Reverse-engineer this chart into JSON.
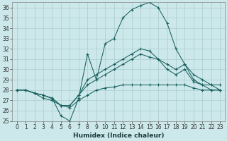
{
  "xlabel": "Humidex (Indice chaleur)",
  "xlim": [
    -0.5,
    23.5
  ],
  "ylim": [
    25,
    36.5
  ],
  "yticks": [
    25,
    26,
    27,
    28,
    29,
    30,
    31,
    32,
    33,
    34,
    35,
    36
  ],
  "xticks": [
    0,
    1,
    2,
    3,
    4,
    5,
    6,
    7,
    8,
    9,
    10,
    11,
    12,
    13,
    14,
    15,
    16,
    17,
    18,
    19,
    20,
    21,
    22,
    23
  ],
  "bg_color": "#cce8ea",
  "grid_color": "#aacccc",
  "line_color": "#1a6060",
  "series": {
    "s1": [
      28,
      28,
      27.7,
      27.5,
      27.2,
      25.5,
      25.0,
      27.2,
      31.5,
      29.0,
      32.5,
      33.0,
      35.0,
      35.8,
      36.2,
      36.5,
      36.0,
      34.5,
      32.0,
      30.5,
      29.0,
      28.5,
      28.5,
      28.0
    ],
    "s2": [
      28,
      28,
      27.7,
      27.5,
      27.2,
      26.5,
      26.5,
      27.5,
      29.0,
      29.5,
      30.0,
      30.5,
      31.0,
      31.5,
      32.0,
      31.8,
      31.0,
      30.5,
      30.0,
      30.5,
      29.5,
      29.0,
      28.5,
      28.5
    ],
    "s3": [
      28,
      28,
      27.7,
      27.5,
      27.2,
      26.5,
      26.5,
      27.5,
      28.5,
      29.0,
      29.5,
      30.0,
      30.5,
      31.0,
      31.5,
      31.2,
      31.0,
      30.0,
      29.5,
      30.0,
      28.8,
      28.5,
      28.0,
      28.0
    ],
    "s4": [
      28,
      28,
      27.7,
      27.2,
      27.0,
      26.5,
      26.3,
      27.0,
      27.5,
      28.0,
      28.2,
      28.3,
      28.5,
      28.5,
      28.5,
      28.5,
      28.5,
      28.5,
      28.5,
      28.5,
      28.2,
      28.0,
      28.0,
      28.0
    ]
  },
  "tick_fontsize": 5.5,
  "xlabel_fontsize": 6.5,
  "xlabel_fontweight": "bold"
}
